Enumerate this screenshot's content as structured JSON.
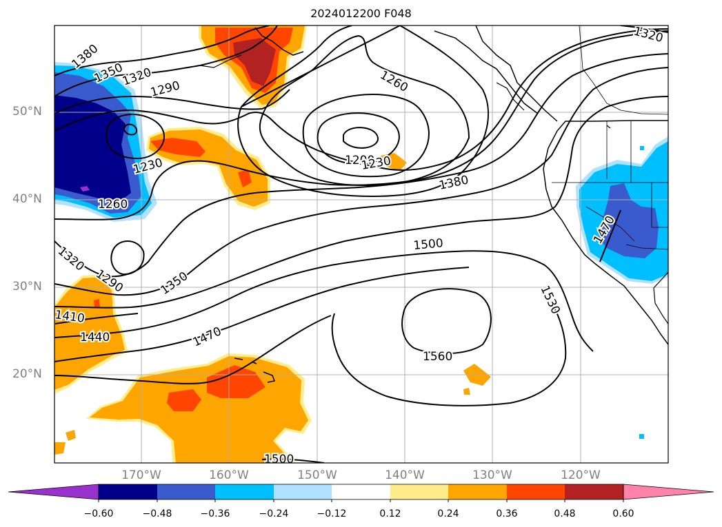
{
  "title": "2024012200 F048",
  "lat_labels": [
    "50°N",
    "40°N",
    "30°N",
    "20°N"
  ],
  "lon_labels": [
    "170°W",
    "160°W",
    "150°W",
    "140°W",
    "130°W",
    "120°W"
  ],
  "contour_labels": [
    "1380",
    "1350",
    "1320",
    "1290",
    "1230",
    "1260",
    "1260",
    "1200",
    "1230",
    "1380",
    "1500",
    "1530",
    "1560",
    "1470",
    "1440",
    "1410",
    "1320",
    "1290",
    "1350",
    "1470",
    "1500",
    "1320"
  ],
  "colorbar": {
    "ticks": [
      "−0.60",
      "−0.48",
      "−0.36",
      "−0.24",
      "−0.12",
      "0.12",
      "0.24",
      "0.36",
      "0.48",
      "0.60"
    ],
    "colors": [
      "#9932cc",
      "#00008b",
      "#3a5bcd",
      "#00bfff",
      "#b0e2ff",
      "#ffffff",
      "#ffec8b",
      "#ffa500",
      "#ff4500",
      "#b22222",
      "#ff82ab"
    ]
  }
}
